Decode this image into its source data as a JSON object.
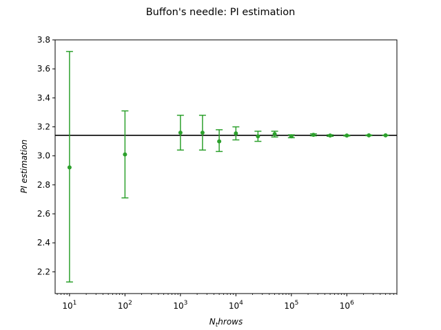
{
  "chart_data": {
    "type": "scatter",
    "title": "Buffon's needle: PI estimation",
    "xlabel": "N_throws",
    "ylabel": "PI estimation",
    "x_scale": "log",
    "xlim": [
      5.5,
      8000000
    ],
    "ylim": [
      2.05,
      3.8
    ],
    "x_ticks": [
      {
        "exp": "1",
        "value": 10
      },
      {
        "exp": "2",
        "value": 100
      },
      {
        "exp": "3",
        "value": 1000
      },
      {
        "exp": "4",
        "value": 10000
      },
      {
        "exp": "5",
        "value": 100000
      },
      {
        "exp": "6",
        "value": 1000000
      }
    ],
    "x_tick_base": "10",
    "y_ticks": [
      "2.2",
      "2.4",
      "2.6",
      "2.8",
      "3.0",
      "3.2",
      "3.4",
      "3.6",
      "3.8"
    ],
    "reference_line": {
      "y": 3.1416,
      "color": "#000000"
    },
    "color": "#2ca02c",
    "grid": false,
    "series": [
      {
        "points": [
          {
            "x": 10,
            "y": 2.92,
            "low": 2.13,
            "high": 3.72
          },
          {
            "x": 100,
            "y": 3.01,
            "low": 2.71,
            "high": 3.31
          },
          {
            "x": 1000,
            "y": 3.16,
            "low": 3.04,
            "high": 3.28
          },
          {
            "x": 2500,
            "y": 3.16,
            "low": 3.04,
            "high": 3.28
          },
          {
            "x": 5000,
            "y": 3.1,
            "low": 3.03,
            "high": 3.18
          },
          {
            "x": 10000,
            "y": 3.155,
            "low": 3.11,
            "high": 3.2
          },
          {
            "x": 25000,
            "y": 3.135,
            "low": 3.1,
            "high": 3.17
          },
          {
            "x": 50000,
            "y": 3.15,
            "low": 3.13,
            "high": 3.17
          },
          {
            "x": 100000,
            "y": 3.135,
            "low": 3.125,
            "high": 3.145
          },
          {
            "x": 250000,
            "y": 3.145,
            "low": 3.138,
            "high": 3.152
          },
          {
            "x": 500000,
            "y": 3.14,
            "low": 3.135,
            "high": 3.145
          },
          {
            "x": 1000000,
            "y": 3.14,
            "low": 3.137,
            "high": 3.143
          },
          {
            "x": 2500000,
            "y": 3.1415,
            "low": 3.139,
            "high": 3.144
          },
          {
            "x": 5000000,
            "y": 3.1415,
            "low": 3.14,
            "high": 3.143
          }
        ]
      }
    ]
  }
}
